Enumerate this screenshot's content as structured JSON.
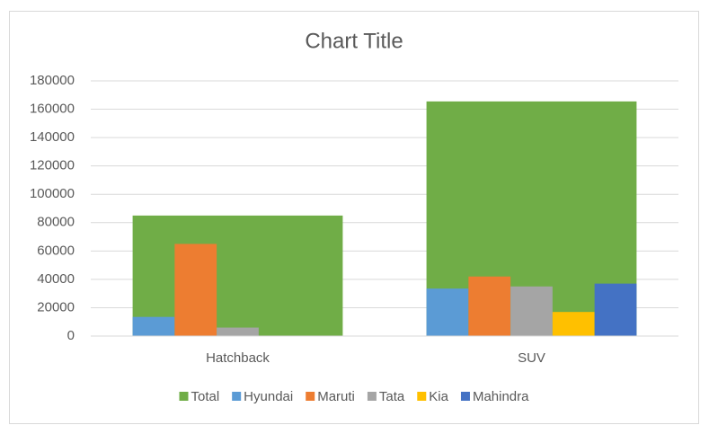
{
  "chart_data": {
    "type": "bar",
    "title": "Chart Title",
    "categories": [
      "Hatchback",
      "SUV"
    ],
    "series": [
      {
        "name": "Total",
        "color": "#70ad47",
        "values": [
          85000,
          165500
        ]
      },
      {
        "name": "Hyundai",
        "color": "#5b9bd5",
        "values": [
          13500,
          33500
        ]
      },
      {
        "name": "Maruti",
        "color": "#ed7d31",
        "values": [
          65000,
          42000
        ]
      },
      {
        "name": "Tata",
        "color": "#a5a5a5",
        "values": [
          6000,
          35000
        ]
      },
      {
        "name": "Kia",
        "color": "#ffc000",
        "values": [
          0,
          17000
        ]
      },
      {
        "name": "Mahindra",
        "color": "#4472c4",
        "values": [
          0,
          37000
        ]
      }
    ],
    "ylim": [
      0,
      180000
    ],
    "yticks": [
      0,
      20000,
      40000,
      60000,
      80000,
      100000,
      120000,
      140000,
      160000,
      180000
    ],
    "grid": true,
    "legend": "bottom"
  }
}
